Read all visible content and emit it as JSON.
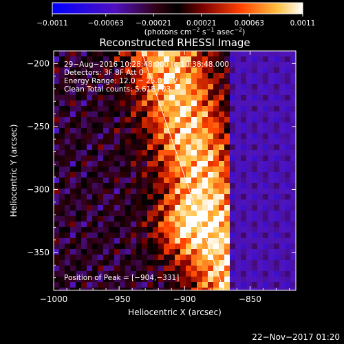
{
  "chart_data": {
    "type": "heatmap",
    "title": "Reconstructed RHESSI Image",
    "xlabel": "Heliocentric X (arcsec)",
    "ylabel": "Heliocentric Y (arcsec)",
    "xlim": [
      -1000,
      -815
    ],
    "ylim": [
      -380,
      -190
    ],
    "x_ticks": [
      -1000,
      -950,
      -900,
      -850
    ],
    "x_tick_labels": [
      "−1000",
      "−950",
      "−900",
      "−850"
    ],
    "y_ticks": [
      -200,
      -250,
      -300,
      -350
    ],
    "y_tick_labels": [
      "−200",
      "−250",
      "−300",
      "−350"
    ],
    "colorbar": {
      "min": -0.0011,
      "max": 0.0011,
      "ticks": [
        -0.0011,
        -0.00063,
        -0.00021,
        0.00021,
        0.00063,
        0.0011
      ],
      "tick_labels": [
        "−0.0011",
        "−0.00063",
        "−0.00021",
        "0.00021",
        "0.00063",
        "0.0011"
      ],
      "label_parts": [
        "(photons cm",
        "−2",
        " s",
        "−1",
        " asec",
        "−2",
        ")"
      ]
    },
    "info_lines": [
      "29−Aug−2016 10:28:48.000 to 10:38:48.000",
      "Detectors: 3F 8F  Att 0",
      "Energy Range: 12.0 − 25.0 keV",
      "Clean    Total counts: 5.61E+03"
    ],
    "peak_label": "Position of Peak = [−904,−331]",
    "peak_position": [
      -904,
      -331
    ],
    "limb_line": [
      [
        -933,
        -190
      ],
      [
        -870,
        -380
      ]
    ],
    "timestamp": "22−Nov−2017 01:20"
  },
  "colors": {
    "background": "#000000",
    "foreground": "#ffffff"
  }
}
